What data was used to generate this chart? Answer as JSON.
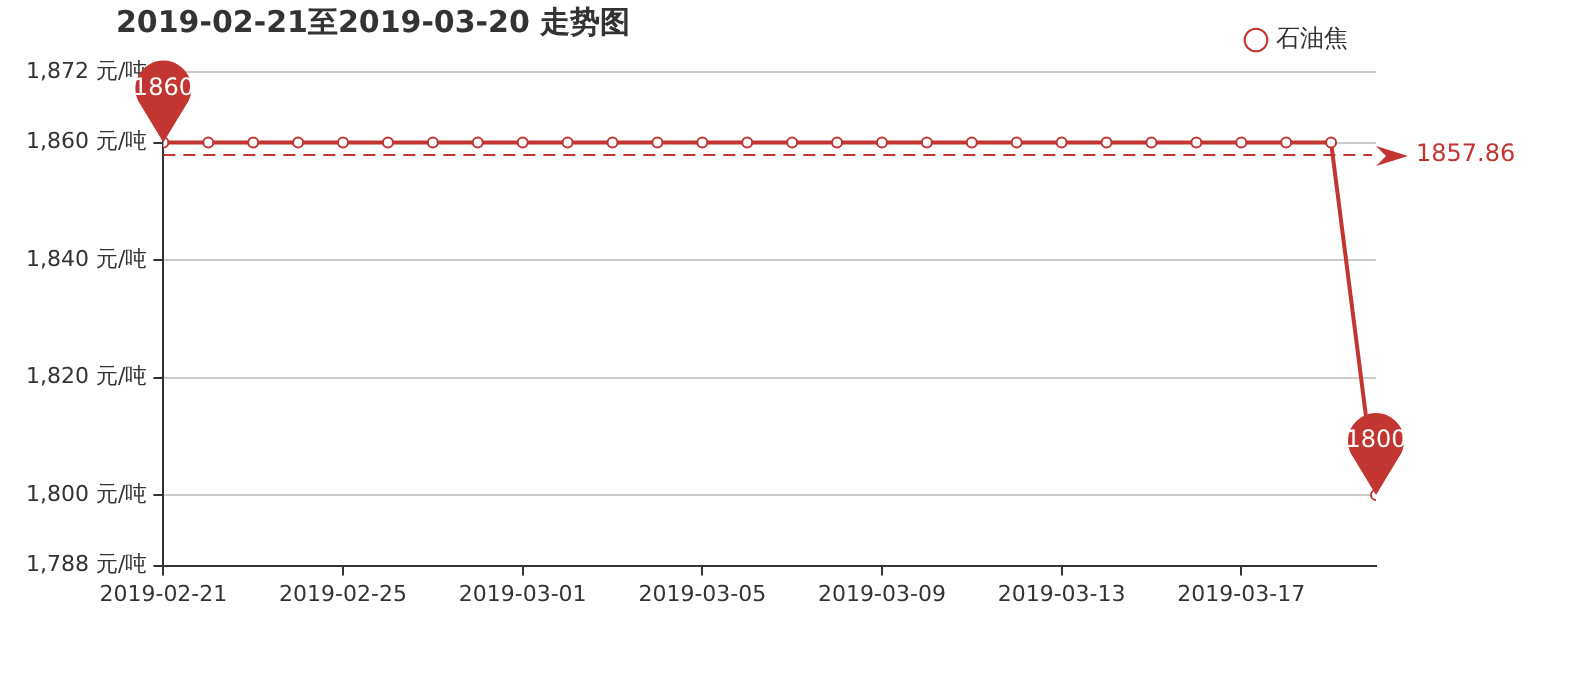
{
  "chart_data": {
    "type": "line",
    "title": "2019-02-21至2019-03-20 走势图",
    "x": [
      "2019-02-21",
      "2019-02-22",
      "2019-02-23",
      "2019-02-24",
      "2019-02-25",
      "2019-02-26",
      "2019-02-27",
      "2019-02-28",
      "2019-03-01",
      "2019-03-02",
      "2019-03-03",
      "2019-03-04",
      "2019-03-05",
      "2019-03-06",
      "2019-03-07",
      "2019-03-08",
      "2019-03-09",
      "2019-03-10",
      "2019-03-11",
      "2019-03-12",
      "2019-03-13",
      "2019-03-14",
      "2019-03-15",
      "2019-03-16",
      "2019-03-17",
      "2019-03-18",
      "2019-03-19",
      "2019-03-20"
    ],
    "series": [
      {
        "name": "石油焦",
        "color": "#c23531",
        "values": [
          1860,
          1860,
          1860,
          1860,
          1860,
          1860,
          1860,
          1860,
          1860,
          1860,
          1860,
          1860,
          1860,
          1860,
          1860,
          1860,
          1860,
          1860,
          1860,
          1860,
          1860,
          1860,
          1860,
          1860,
          1860,
          1860,
          1860,
          1800
        ]
      }
    ],
    "xlim": [
      "2019-02-21",
      "2019-03-20"
    ],
    "xticks": [
      "2019-02-21",
      "2019-02-25",
      "2019-03-01",
      "2019-03-05",
      "2019-03-09",
      "2019-03-13",
      "2019-03-17"
    ],
    "ylim": [
      1788,
      1872
    ],
    "yticks": [
      {
        "value": 1788,
        "label": "1,788 元/吨"
      },
      {
        "value": 1800,
        "label": "1,800 元/吨"
      },
      {
        "value": 1820,
        "label": "1,820 元/吨"
      },
      {
        "value": 1840,
        "label": "1,840 元/吨"
      },
      {
        "value": 1860,
        "label": "1,860 元/吨"
      },
      {
        "value": 1872,
        "label": "1,872 元/吨"
      }
    ],
    "ref_lines": [
      {
        "axis": "y",
        "value": 1857.86,
        "label": "1857.86",
        "color": "#c23531",
        "line_style": "dashed"
      }
    ],
    "annotations": [
      {
        "text": "1860",
        "x": "2019-02-21",
        "y": 1860
      },
      {
        "text": "1800",
        "x": "2019-03-20",
        "y": 1800
      }
    ],
    "grid": "y",
    "legend": "top right",
    "marker": "circle",
    "line_style": "solid"
  }
}
